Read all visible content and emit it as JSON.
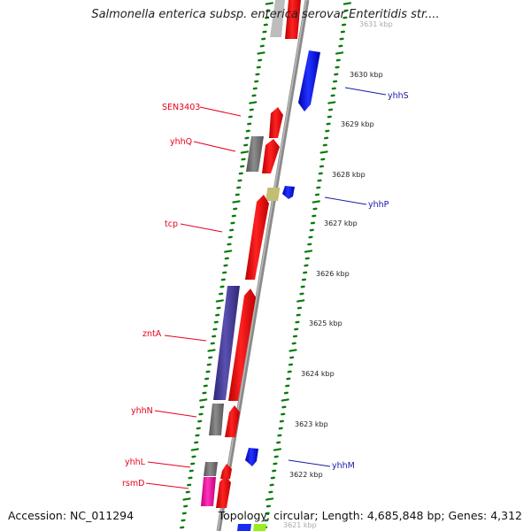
{
  "title": "Salmonella enterica subsp. enterica serovar Enteritidis str....",
  "footer": {
    "accession": "Accession: NC_011294",
    "summary": "Topology: circular; Length: 4,685,848 bp; Genes: 4,312"
  },
  "scale_labels": [
    "3631 kbp",
    "3630 kbp",
    "3629 kbp",
    "3628 kbp",
    "3627 kbp",
    "3626 kbp",
    "3625 kbp",
    "3624 kbp",
    "3623 kbp",
    "3622 kbp",
    "3621 kbp"
  ],
  "genes_left": [
    {
      "label": "SEN3403",
      "color": "#e8001c"
    },
    {
      "label": "yhhQ",
      "color": "#e8001c"
    },
    {
      "label": "tcp",
      "color": "#e8001c"
    },
    {
      "label": "zntA",
      "color": "#e8001c"
    },
    {
      "label": "yhhN",
      "color": "#e8001c"
    },
    {
      "label": "yhhL",
      "color": "#e8001c"
    },
    {
      "label": "rsmD",
      "color": "#e8001c"
    }
  ],
  "genes_right": [
    {
      "label": "yhhS",
      "color": "#1a1aa6"
    },
    {
      "label": "yhhP",
      "color": "#1a1aa6"
    },
    {
      "label": "yhhM",
      "color": "#1a1aa6"
    }
  ],
  "colors": {
    "forward_cds": "#ff0000",
    "reverse_cds": "#0000ee",
    "tick": "#0a7a0a",
    "backbone": "#888888",
    "gray_feature": "#7a7a7a",
    "purple_feature": "#4a3f99",
    "khaki_feature": "#c8c078",
    "pink_feature": "#ee1199",
    "green_feature": "#99ee22"
  }
}
